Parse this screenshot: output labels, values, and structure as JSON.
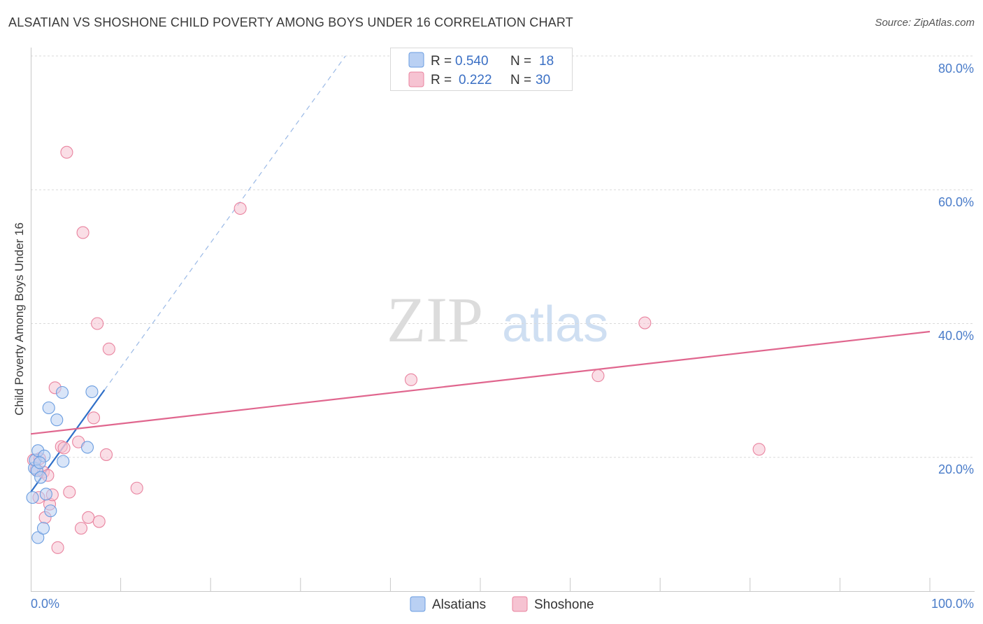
{
  "title": "ALSATIAN VS SHOSHONE CHILD POVERTY AMONG BOYS UNDER 16 CORRELATION CHART",
  "source": "Source: ZipAtlas.com",
  "watermark": {
    "zip": "ZIP",
    "atlas": "atlas"
  },
  "colors": {
    "blue": "#6a9de0",
    "blueFill": "#b9d0f3",
    "pink": "#e9839f",
    "pinkFill": "#f6c3d2",
    "blueLine": "#2f6fc8",
    "pinkLine": "#e0668e",
    "tick": "#4a7cc9"
  },
  "legend": [
    {
      "r_label": "R =",
      "r_value": "0.540",
      "n_label": "N =",
      "n_value": "18"
    },
    {
      "r_label": "R =",
      "r_value": "0.222",
      "n_label": "N =",
      "n_value": "30"
    }
  ],
  "chart_data": {
    "type": "scatter",
    "title": "ALSATIAN VS SHOSHONE CHILD POVERTY AMONG BOYS UNDER 16 CORRELATION CHART",
    "xlabel": "",
    "ylabel": "Child Poverty Among Boys Under 16",
    "xlim": [
      0,
      100
    ],
    "ylim": [
      0,
      80
    ],
    "x_tick_labels": [
      "0.0%",
      "100.0%"
    ],
    "y_ticks": [
      20,
      40,
      60,
      80
    ],
    "y_tick_labels": [
      "20.0%",
      "40.0%",
      "60.0%",
      "80.0%"
    ],
    "series": [
      {
        "name": "Alsatians",
        "color": "#6a9de0",
        "points": [
          [
            0.2,
            14.0
          ],
          [
            0.4,
            18.4
          ],
          [
            0.5,
            19.6
          ],
          [
            0.7,
            18.0
          ],
          [
            0.8,
            21.0
          ],
          [
            0.8,
            8.0
          ],
          [
            1.1,
            17.0
          ],
          [
            1.4,
            9.4
          ],
          [
            1.5,
            20.2
          ],
          [
            1.7,
            14.5
          ],
          [
            2.0,
            27.4
          ],
          [
            2.2,
            12.0
          ],
          [
            2.9,
            25.6
          ],
          [
            3.5,
            29.7
          ],
          [
            3.6,
            19.4
          ],
          [
            6.3,
            21.5
          ],
          [
            6.8,
            29.8
          ],
          [
            1.0,
            19.2
          ]
        ],
        "trend": {
          "x0": 0,
          "y0": 14.8,
          "x1": 35,
          "y1": 80,
          "solid_until_x": 8.2
        }
      },
      {
        "name": "Shoshone",
        "color": "#e9839f",
        "points": [
          [
            0.3,
            19.6
          ],
          [
            0.6,
            18.2
          ],
          [
            0.9,
            14.0
          ],
          [
            1.0,
            19.8
          ],
          [
            1.4,
            17.8
          ],
          [
            1.6,
            11.0
          ],
          [
            1.9,
            17.3
          ],
          [
            2.1,
            13.0
          ],
          [
            2.4,
            14.4
          ],
          [
            2.7,
            30.4
          ],
          [
            3.0,
            6.5
          ],
          [
            3.4,
            21.6
          ],
          [
            3.7,
            21.4
          ],
          [
            4.0,
            65.6
          ],
          [
            4.3,
            14.8
          ],
          [
            5.3,
            22.3
          ],
          [
            5.6,
            9.4
          ],
          [
            5.8,
            53.6
          ],
          [
            6.4,
            11.0
          ],
          [
            7.0,
            25.9
          ],
          [
            7.4,
            40.0
          ],
          [
            7.6,
            10.4
          ],
          [
            8.4,
            20.4
          ],
          [
            8.7,
            36.2
          ],
          [
            11.8,
            15.4
          ],
          [
            23.3,
            57.2
          ],
          [
            42.3,
            31.6
          ],
          [
            63.1,
            32.2
          ],
          [
            68.3,
            40.1
          ],
          [
            81.0,
            21.2
          ]
        ],
        "trend": {
          "x0": 0,
          "y0": 23.5,
          "x1": 100,
          "y1": 38.8
        }
      }
    ]
  }
}
